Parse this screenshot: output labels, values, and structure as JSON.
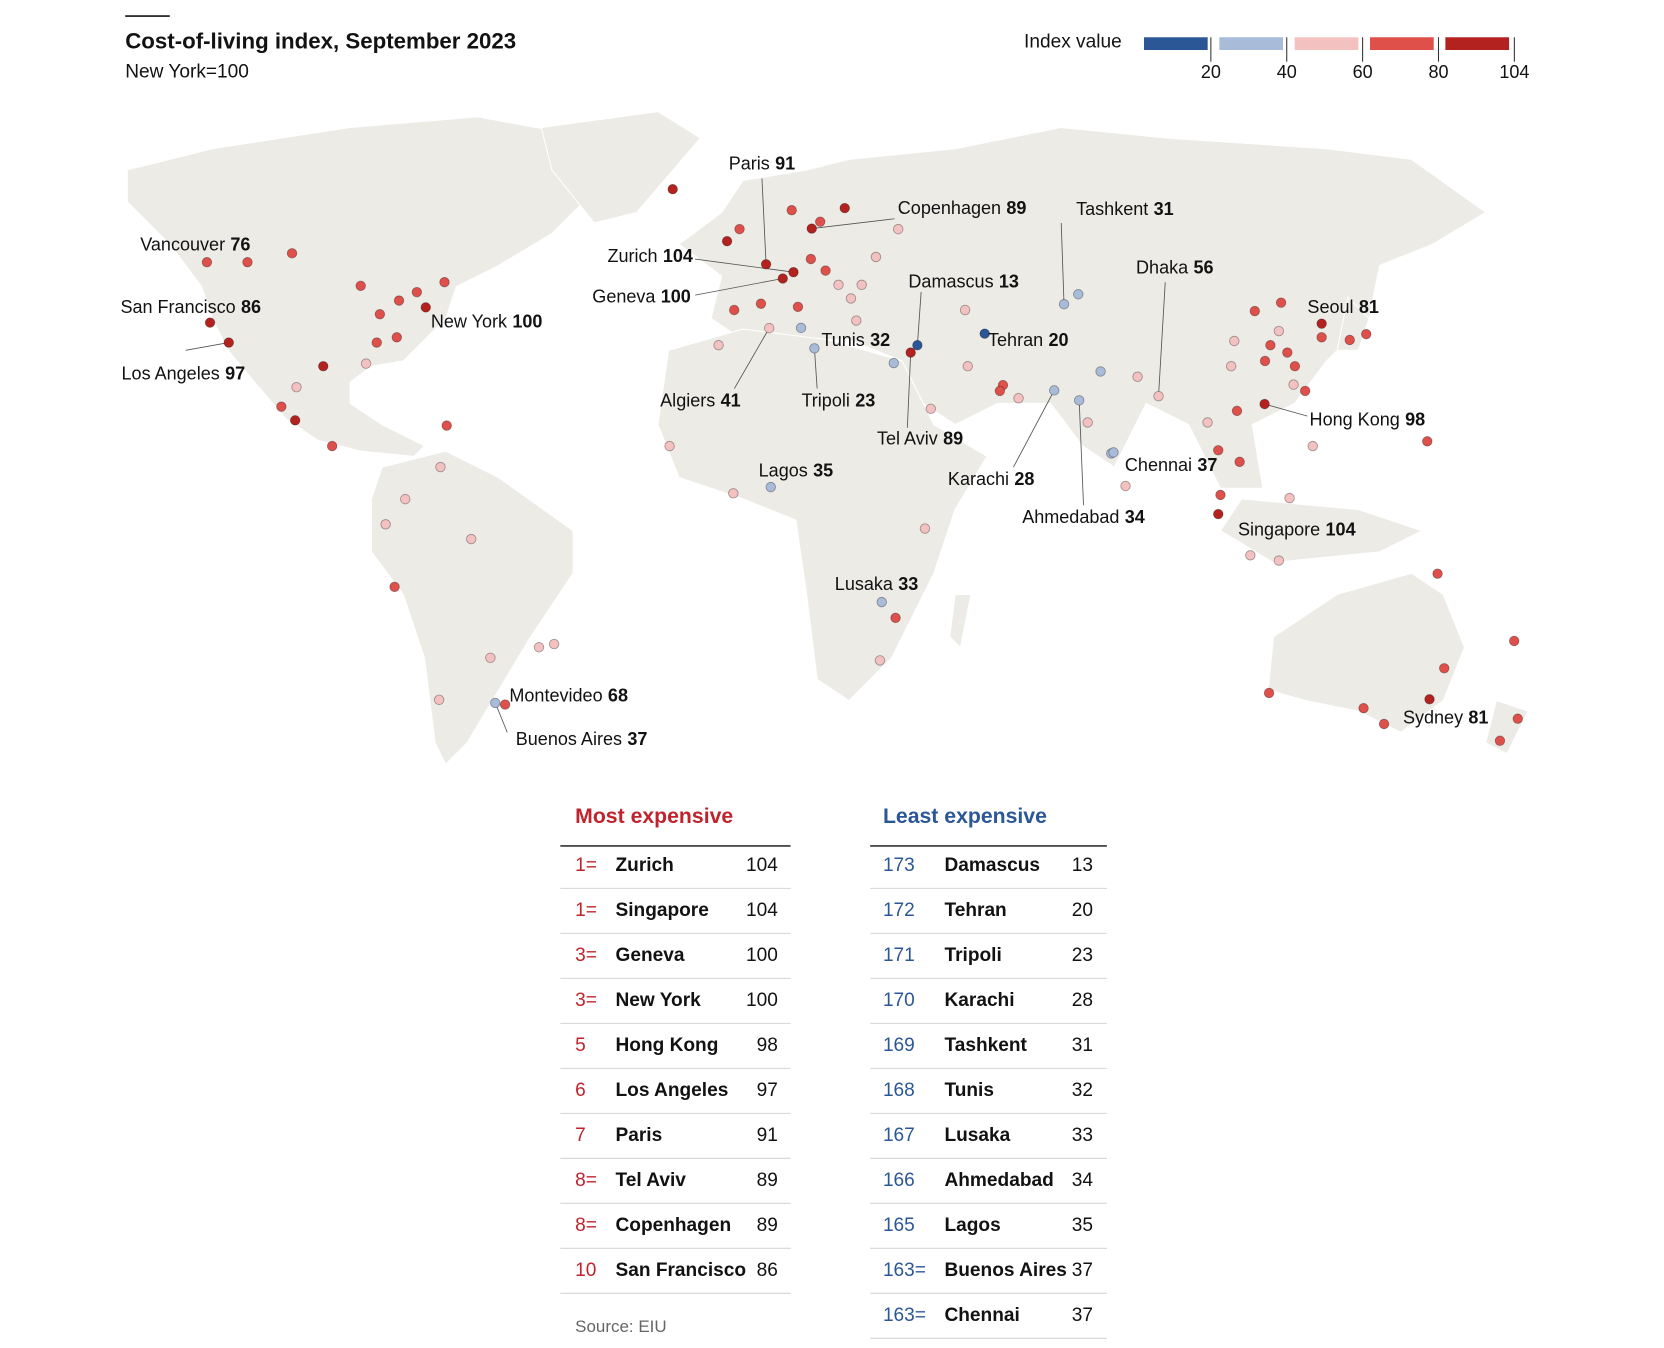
{
  "chart_data": {
    "type": "map",
    "title": "Cost-of-living index, September 2023",
    "subtitle": "New York=100",
    "legend": {
      "title": "Index value",
      "ticks": [
        20,
        40,
        60,
        80,
        104
      ],
      "colors": [
        "#2b5797",
        "#a8bbd8",
        "#f3c1c0",
        "#e0504b",
        "#b42220"
      ]
    },
    "cities": [
      {
        "name": "Vancouver",
        "value": 76,
        "lon": -123.1,
        "lat": 49.3
      },
      {
        "name": "San Francisco",
        "value": 86,
        "lon": -122.4,
        "lat": 37.8
      },
      {
        "name": "Los Angeles",
        "value": 97,
        "lon": -118.2,
        "lat": 34
      },
      {
        "name": "New York",
        "value": 100,
        "lon": -74,
        "lat": 40.7
      },
      {
        "name": "Paris",
        "value": 91,
        "lon": 2.35,
        "lat": 48.9
      },
      {
        "name": "Zurich",
        "value": 104,
        "lon": 8.5,
        "lat": 47.4
      },
      {
        "name": "Geneva",
        "value": 100,
        "lon": 6.1,
        "lat": 46.2
      },
      {
        "name": "Copenhagen",
        "value": 89,
        "lon": 12.6,
        "lat": 55.7
      },
      {
        "name": "Damascus",
        "value": 13,
        "lon": 36.3,
        "lat": 33.5
      },
      {
        "name": "Tel Aviv",
        "value": 89,
        "lon": 34.8,
        "lat": 32.1
      },
      {
        "name": "Tunis",
        "value": 32,
        "lon": 10.2,
        "lat": 36.8
      },
      {
        "name": "Tripoli",
        "value": 23,
        "lon": 13.2,
        "lat": 32.9
      },
      {
        "name": "Algiers",
        "value": 41,
        "lon": 3.06,
        "lat": 36.75
      },
      {
        "name": "Lagos",
        "value": 35,
        "lon": 3.4,
        "lat": 6.5
      },
      {
        "name": "Lusaka",
        "value": 33,
        "lon": 28.3,
        "lat": -15.4
      },
      {
        "name": "Tehran",
        "value": 20,
        "lon": 51.4,
        "lat": 35.7
      },
      {
        "name": "Tashkent",
        "value": 31,
        "lon": 69.2,
        "lat": 41.3
      },
      {
        "name": "Karachi",
        "value": 28,
        "lon": 67,
        "lat": 24.9
      },
      {
        "name": "Ahmedabad",
        "value": 34,
        "lon": 72.6,
        "lat": 23
      },
      {
        "name": "Chennai",
        "value": 37,
        "lon": 80.3,
        "lat": 13.1
      },
      {
        "name": "Dhaka",
        "value": 56,
        "lon": 90.4,
        "lat": 23.8
      },
      {
        "name": "Seoul",
        "value": 81,
        "lon": 127,
        "lat": 37.6
      },
      {
        "name": "Hong Kong",
        "value": 98,
        "lon": 114.2,
        "lat": 22.3
      },
      {
        "name": "Singapore",
        "value": 104,
        "lon": 103.8,
        "lat": 1.35
      },
      {
        "name": "Sydney",
        "value": 81,
        "lon": 151.2,
        "lat": -33.9
      },
      {
        "name": "Montevideo",
        "value": 68,
        "lon": -56.2,
        "lat": -34.9
      },
      {
        "name": "Buenos Aires",
        "value": 37,
        "lon": -58.4,
        "lat": -34.6
      }
    ],
    "other_cities": [
      {
        "lon": -114,
        "lat": 49.3,
        "value": 72
      },
      {
        "lon": -104,
        "lat": 51,
        "value": 72
      },
      {
        "lon": -88.6,
        "lat": 44.8,
        "value": 72
      },
      {
        "lon": -84.3,
        "lat": 39.4,
        "value": 72
      },
      {
        "lon": -80,
        "lat": 42,
        "value": 72
      },
      {
        "lon": -76,
        "lat": 43.6,
        "value": 72
      },
      {
        "lon": -69.8,
        "lat": 45.5,
        "value": 72
      },
      {
        "lon": -80.5,
        "lat": 35,
        "value": 72
      },
      {
        "lon": -85,
        "lat": 34,
        "value": 72
      },
      {
        "lon": -97,
        "lat": 29.5,
        "value": 85
      },
      {
        "lon": -87.4,
        "lat": 30,
        "value": 50
      },
      {
        "lon": -103,
        "lat": 25.5,
        "value": 50
      },
      {
        "lon": -106.4,
        "lat": 21.8,
        "value": 72
      },
      {
        "lon": -103.3,
        "lat": 19.2,
        "value": 85
      },
      {
        "lon": -95,
        "lat": 14.3,
        "value": 72
      },
      {
        "lon": -69.3,
        "lat": 18.2,
        "value": 72
      },
      {
        "lon": -70.7,
        "lat": 10.3,
        "value": 50
      },
      {
        "lon": -78.6,
        "lat": 4.2,
        "value": 50
      },
      {
        "lon": -83,
        "lat": -0.6,
        "value": 50
      },
      {
        "lon": -63.8,
        "lat": -3.4,
        "value": 50
      },
      {
        "lon": -81,
        "lat": -12.5,
        "value": 72
      },
      {
        "lon": -59.5,
        "lat": -26,
        "value": 50
      },
      {
        "lon": -48.6,
        "lat": -24,
        "value": 50
      },
      {
        "lon": -45.2,
        "lat": -23.4,
        "value": 50
      },
      {
        "lon": -71,
        "lat": -34,
        "value": 50
      },
      {
        "lon": -18.6,
        "lat": 63.2,
        "value": 85
      },
      {
        "lon": -3.6,
        "lat": 55.6,
        "value": 72
      },
      {
        "lon": -6.4,
        "lat": 53.3,
        "value": 85
      },
      {
        "lon": 8.1,
        "lat": 59.2,
        "value": 72
      },
      {
        "lon": 14.5,
        "lat": 57,
        "value": 72
      },
      {
        "lon": 20,
        "lat": 59.6,
        "value": 85
      },
      {
        "lon": 32,
        "lat": 55.6,
        "value": 50
      },
      {
        "lon": 12.4,
        "lat": 49.9,
        "value": 72
      },
      {
        "lon": 15.7,
        "lat": 47.7,
        "value": 72
      },
      {
        "lon": 27,
        "lat": 50.3,
        "value": 50
      },
      {
        "lon": 18.6,
        "lat": 45,
        "value": 50
      },
      {
        "lon": 23.8,
        "lat": 45,
        "value": 50
      },
      {
        "lon": 21.4,
        "lat": 42.4,
        "value": 50
      },
      {
        "lon": -4.8,
        "lat": 40.2,
        "value": 72
      },
      {
        "lon": 1.2,
        "lat": 41.4,
        "value": 72
      },
      {
        "lon": -8.3,
        "lat": 33.5,
        "value": 50
      },
      {
        "lon": 9.5,
        "lat": 40.8,
        "value": 72
      },
      {
        "lon": 22.6,
        "lat": 38.2,
        "value": 50
      },
      {
        "lon": -19.3,
        "lat": 14.3,
        "value": 50
      },
      {
        "lon": -5,
        "lat": 5.3,
        "value": 50
      },
      {
        "lon": 38,
        "lat": -1.4,
        "value": 50
      },
      {
        "lon": 31.4,
        "lat": -18.4,
        "value": 72
      },
      {
        "lon": 27.9,
        "lat": -26.5,
        "value": 50
      },
      {
        "lon": 47,
        "lat": 40.2,
        "value": 50
      },
      {
        "lon": 72.4,
        "lat": 43.2,
        "value": 32
      },
      {
        "lon": 31,
        "lat": 30.1,
        "value": 32
      },
      {
        "lon": 39.3,
        "lat": 21.4,
        "value": 50
      },
      {
        "lon": 47.6,
        "lat": 29.5,
        "value": 50
      },
      {
        "lon": 55.5,
        "lat": 25.9,
        "value": 72
      },
      {
        "lon": 54.8,
        "lat": 24.8,
        "value": 72
      },
      {
        "lon": 59,
        "lat": 23.4,
        "value": 50
      },
      {
        "lon": 77.4,
        "lat": 28.5,
        "value": 32
      },
      {
        "lon": 85.7,
        "lat": 27.5,
        "value": 50
      },
      {
        "lon": 74.5,
        "lat": 18.8,
        "value": 50
      },
      {
        "lon": 79.8,
        "lat": 12.9,
        "value": 32
      },
      {
        "lon": 83,
        "lat": 6.7,
        "value": 50
      },
      {
        "lon": 117.9,
        "lat": 41.6,
        "value": 72
      },
      {
        "lon": 112,
        "lat": 40,
        "value": 72
      },
      {
        "lon": 127,
        "lat": 35,
        "value": 72
      },
      {
        "lon": 133.3,
        "lat": 34.5,
        "value": 72
      },
      {
        "lon": 137,
        "lat": 35.6,
        "value": 72
      },
      {
        "lon": 117.4,
        "lat": 36.2,
        "value": 50
      },
      {
        "lon": 107.4,
        "lat": 34.3,
        "value": 50
      },
      {
        "lon": 106.7,
        "lat": 29.5,
        "value": 50
      },
      {
        "lon": 115.5,
        "lat": 33.5,
        "value": 72
      },
      {
        "lon": 119.3,
        "lat": 32.1,
        "value": 72
      },
      {
        "lon": 121,
        "lat": 29.5,
        "value": 72
      },
      {
        "lon": 114.3,
        "lat": 30.5,
        "value": 72
      },
      {
        "lon": 120.7,
        "lat": 26,
        "value": 50
      },
      {
        "lon": 123.3,
        "lat": 24.8,
        "value": 72
      },
      {
        "lon": 108,
        "lat": 21,
        "value": 72
      },
      {
        "lon": 101.4,
        "lat": 18.8,
        "value": 50
      },
      {
        "lon": 103.8,
        "lat": 13.5,
        "value": 72
      },
      {
        "lon": 108.6,
        "lat": 11.3,
        "value": 72
      },
      {
        "lon": 125,
        "lat": 14.3,
        "value": 50
      },
      {
        "lon": 119.8,
        "lat": 4.4,
        "value": 50
      },
      {
        "lon": 150.7,
        "lat": 15.2,
        "value": 72
      },
      {
        "lon": 104.3,
        "lat": 5,
        "value": 72
      },
      {
        "lon": 111,
        "lat": -6.5,
        "value": 50
      },
      {
        "lon": 117.4,
        "lat": -7.5,
        "value": 50
      },
      {
        "lon": 153,
        "lat": -10,
        "value": 72
      },
      {
        "lon": 170.2,
        "lat": -22.8,
        "value": 72
      },
      {
        "lon": 154.5,
        "lat": -28,
        "value": 72
      },
      {
        "lon": 115.2,
        "lat": -32.7,
        "value": 72
      },
      {
        "lon": 136.4,
        "lat": -35.6,
        "value": 72
      },
      {
        "lon": 141,
        "lat": -38.6,
        "value": 72
      },
      {
        "lon": 171,
        "lat": -37.6,
        "value": 72
      },
      {
        "lon": 167,
        "lat": -41.8,
        "value": 72
      }
    ]
  },
  "tables": [
    {
      "title": "Most expensive",
      "rows": [
        [
          "1=",
          "Zurich",
          104
        ],
        [
          "1=",
          "Singapore",
          104
        ],
        [
          "3=",
          "Geneva",
          100
        ],
        [
          "3=",
          "New York",
          100
        ],
        [
          "5",
          "Hong Kong",
          98
        ],
        [
          "6",
          "Los Angeles",
          97
        ],
        [
          "7",
          "Paris",
          91
        ],
        [
          "8=",
          "Tel Aviv",
          89
        ],
        [
          "8=",
          "Copenhagen",
          89
        ],
        [
          "10",
          "San Francisco",
          86
        ]
      ]
    },
    {
      "title": "Least expensive",
      "rows": [
        [
          "173",
          "Damascus",
          13
        ],
        [
          "172",
          "Tehran",
          20
        ],
        [
          "171",
          "Tripoli",
          23
        ],
        [
          "170",
          "Karachi",
          28
        ],
        [
          "169",
          "Tashkent",
          31
        ],
        [
          "168",
          "Tunis",
          32
        ],
        [
          "167",
          "Lusaka",
          33
        ],
        [
          "166",
          "Ahmedabad",
          34
        ],
        [
          "165",
          "Lagos",
          35
        ],
        [
          "163=",
          "Buenos Aires",
          37
        ],
        [
          "163=",
          "Chennai",
          37
        ]
      ]
    }
  ],
  "source": "Source: EIU"
}
